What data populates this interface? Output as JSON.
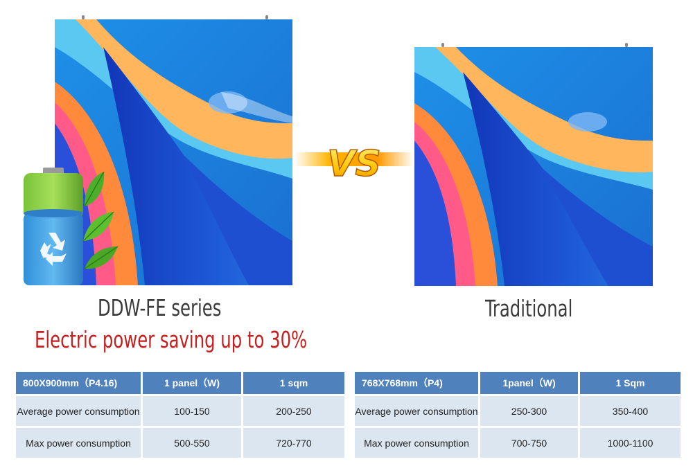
{
  "left": {
    "caption": "DDW-FE series",
    "saving": "Electric power saving up to 30%",
    "table": {
      "headers": [
        "800X900mm（P4.16)",
        "1 panel（W)",
        "1 sqm"
      ],
      "rows": [
        [
          "Average power consumption",
          "100-150",
          "200-250"
        ],
        [
          "Max power consumption",
          "500-550",
          "720-770"
        ]
      ]
    }
  },
  "vs_label": "VS",
  "right": {
    "caption": "Traditional",
    "table": {
      "headers": [
        "768X768mm（P4)",
        "1panel（W)",
        "1 Sqm"
      ],
      "rows": [
        [
          "Average power consumption",
          "250-300",
          "350-400"
        ],
        [
          "Max power consumption",
          "700-750",
          "1000-1100"
        ]
      ]
    }
  },
  "icons": [
    "battery-icon",
    "recycle-icon",
    "leaf-icon",
    "vs-icon"
  ],
  "colors": {
    "header": "#4f81bd",
    "cell": "#dce6f1",
    "accent_red": "#c41e1e",
    "caption": "#3a3a3a"
  }
}
